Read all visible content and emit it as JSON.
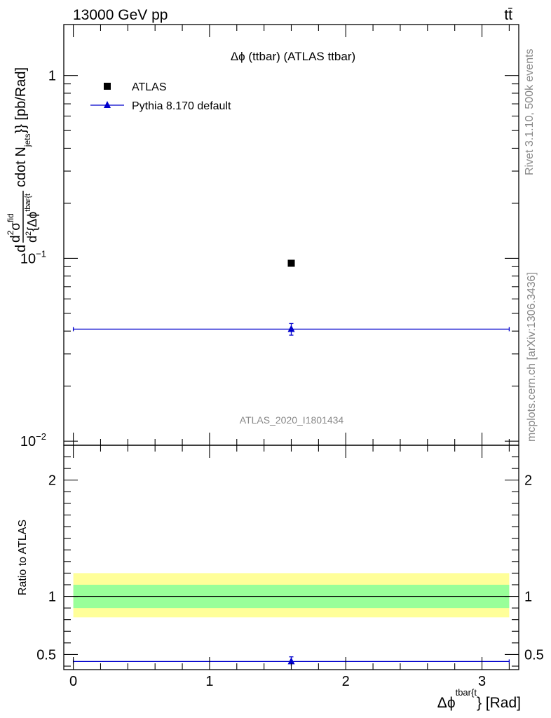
{
  "header": {
    "left": "13000 GeV pp",
    "right": "tt̄"
  },
  "side_labels": {
    "rivet": "Rivet 3.1.10,  500k events",
    "mcplots": "mcplots.cern.ch [arXiv:1306.3436]"
  },
  "chart_data": [
    {
      "type": "scatter",
      "title": "Δϕ (ttbar) (ATLAS ttbar)",
      "watermark": "ATLAS_2020_I1801434",
      "yscale": "log",
      "xlim": [
        -0.07,
        3.27
      ],
      "ylim": [
        0.0095,
        1.9
      ],
      "ylabel": {
        "prefix": "d",
        "num_main": "d",
        "num_sup1": "2",
        "num_sigma": "σ",
        "num_sup2": "fid",
        "den_main": "d",
        "den_sup1": "2",
        "den_brace": "{Δϕ",
        "den_sup2": "tbar{t",
        "suffix_main": "cdot N",
        "suffix_sub": "jets",
        "suffix_end": "}} [pb/Rad]"
      },
      "yticks": [
        {
          "value": 1,
          "label": "1"
        },
        {
          "value": 0.1,
          "label": "10",
          "exp": "−1"
        },
        {
          "value": 0.01,
          "label": "10",
          "exp": "−2"
        }
      ],
      "legend": {
        "placement": "top-left"
      },
      "series": [
        {
          "name": "ATLAS",
          "marker": "square",
          "color": "#000000",
          "points": [
            {
              "x": 1.6,
              "y": 0.094,
              "xerr": [
                0,
                0
              ],
              "yerr": [
                0,
                0
              ]
            }
          ]
        },
        {
          "name": "Pythia 8.170 default",
          "marker": "triangle",
          "color": "#0000cc",
          "points": [
            {
              "x": 1.6,
              "y": 0.041,
              "xlo": 0.0,
              "xhi": 3.2,
              "yerr": [
                0.003,
                0.003
              ]
            }
          ]
        }
      ]
    },
    {
      "type": "scatter",
      "ylabel": "Ratio to ATLAS",
      "xlabel": {
        "main": "Δϕ",
        "sup": "tbar{t",
        "end": "} [Rad]"
      },
      "xlim": [
        -0.07,
        3.27
      ],
      "ylim": [
        0.37,
        2.3
      ],
      "xticks": [
        {
          "value": 0,
          "label": "0"
        },
        {
          "value": 1,
          "label": "1"
        },
        {
          "value": 2,
          "label": "2"
        },
        {
          "value": 3,
          "label": "3"
        }
      ],
      "yticks": [
        {
          "value": 0.5,
          "label": "0.5"
        },
        {
          "value": 1,
          "label": "1"
        },
        {
          "value": 2,
          "label": "2"
        }
      ],
      "bands": [
        {
          "name": "outer",
          "color": "#ffff99",
          "xlo": 0.0,
          "xhi": 3.2,
          "ylo": 0.82,
          "yhi": 1.2
        },
        {
          "name": "inner",
          "color": "#99ff99",
          "xlo": 0.0,
          "xhi": 3.2,
          "ylo": 0.9,
          "yhi": 1.1
        }
      ],
      "reference_line": 1,
      "series": [
        {
          "name": "Pythia 8.170 default",
          "color": "#0000cc",
          "points": [
            {
              "x": 1.6,
              "y": 0.44,
              "xlo": 0.0,
              "xhi": 3.2,
              "yerr": [
                0.04,
                0.04
              ]
            }
          ]
        }
      ]
    }
  ]
}
